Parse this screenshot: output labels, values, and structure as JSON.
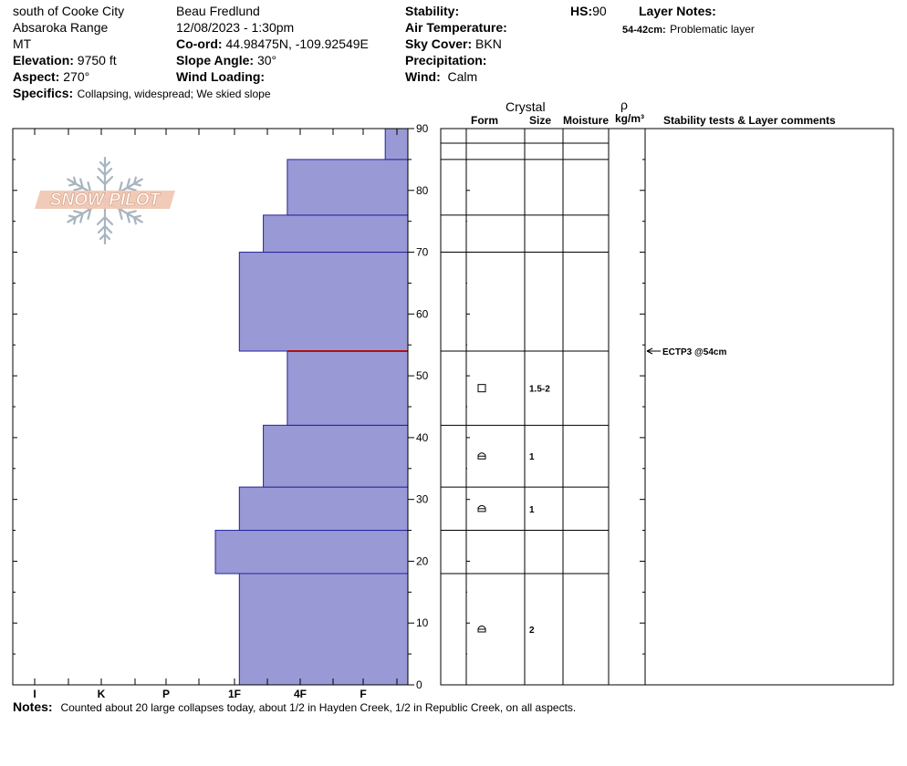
{
  "header": {
    "location": "south of Cooke City",
    "range": "Absaroka Range",
    "state": "MT",
    "elevation_label": "Elevation:",
    "elevation_value": "9750 ft",
    "aspect_label": "Aspect:",
    "aspect_value": "270°",
    "specifics_label": "Specifics:",
    "specifics_value": "Collapsing, widespread;  We skied slope",
    "observer": "Beau  Fredlund",
    "datetime": "12/08/2023 - 1:30pm",
    "coord_label": "Co-ord:",
    "coord_value": "44.98475N, -109.92549E",
    "slope_label": "Slope Angle:",
    "slope_value": "30°",
    "wind_loading_label": "Wind Loading:",
    "wind_loading_value": "",
    "stability_label": "Stability:",
    "stability_value": "",
    "air_temp_label": "Air Temperature:",
    "air_temp_value": "",
    "sky_label": "Sky Cover:",
    "sky_value": "BKN",
    "precip_label": "Precipitation:",
    "precip_value": "",
    "wind_label": "Wind:",
    "wind_value": "Calm",
    "hs_label": "HS:",
    "hs_value": "90",
    "layer_notes_label": "Layer Notes:",
    "layer_note_range": "54-42cm:",
    "layer_note_text": "Problematic layer"
  },
  "logo": {
    "text": "SNOW PILOT",
    "icon": "snowflake-icon"
  },
  "table_headers": {
    "crystal": "Crystal",
    "form": "Form",
    "size": "Size",
    "moisture": "Moisture",
    "rho": "ρ",
    "density_unit": "kg/m³",
    "stability": "Stability tests & Layer comments"
  },
  "notes": {
    "label": "Notes:",
    "text": "Counted about 20 large collapses today, about 1/2 in Hayden Creek, 1/2 in Republic Creek, on all aspects."
  },
  "chart_data": {
    "type": "bar",
    "orientation": "horizontal",
    "description_axis": "depth",
    "ylim": [
      0,
      90
    ],
    "y_ticks": [
      0,
      10,
      20,
      30,
      40,
      50,
      60,
      70,
      80,
      90
    ],
    "hardness_scale": [
      "I",
      "K",
      "P",
      "1F",
      "4F",
      "F"
    ],
    "layers": [
      {
        "bottom": 0,
        "top": 18,
        "hardness": "1F-"
      },
      {
        "bottom": 18,
        "top": 25,
        "hardness": "1F+"
      },
      {
        "bottom": 25,
        "top": 32,
        "hardness": "1F-"
      },
      {
        "bottom": 32,
        "top": 42,
        "hardness": "4F+"
      },
      {
        "bottom": 42,
        "top": 54,
        "hardness": "4F-"
      },
      {
        "bottom": 54,
        "top": 70,
        "hardness": "1F-"
      },
      {
        "bottom": 70,
        "top": 76,
        "hardness": "4F+"
      },
      {
        "bottom": 76,
        "top": 85,
        "hardness": "4F-"
      },
      {
        "bottom": 85,
        "top": 90,
        "hardness": "F-"
      }
    ],
    "hardness_position": {
      "F-": 0.34,
      "4F-": 1.81,
      "4F+": 2.17,
      "1F-": 2.53,
      "1F+": 2.89
    },
    "problem_layer_depth": 54,
    "layer_details": [
      {
        "depth": 48,
        "form": "square",
        "size": "1.5-2"
      },
      {
        "depth": 37,
        "form": "cup",
        "size": "1"
      },
      {
        "depth": 28.5,
        "form": "cup",
        "size": "1"
      },
      {
        "depth": 9,
        "form": "cup",
        "size": "2"
      }
    ],
    "stability_tests": [
      {
        "depth": 54,
        "text": "ECTP3 @54cm"
      }
    ],
    "colors": {
      "fill": "#9999d6",
      "edge": "#22229a",
      "problem": "#b01010"
    }
  }
}
